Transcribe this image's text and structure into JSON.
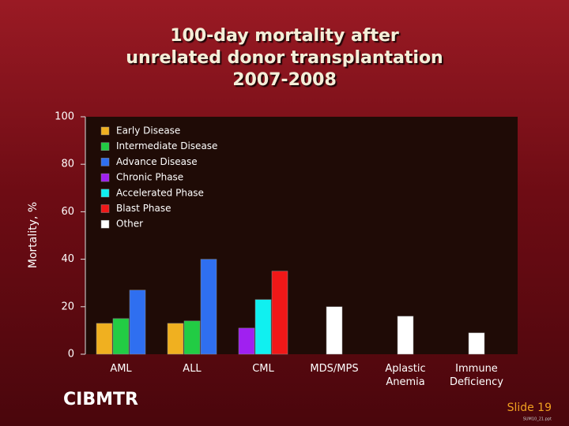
{
  "chart_data": {
    "type": "bar",
    "title": [
      "100-day mortality after",
      "unrelated donor transplantation",
      "2007-2008"
    ],
    "y_label": "Mortality, %",
    "categories": [
      "AML",
      "ALL",
      "CML",
      "MDS/MPS",
      "Aplastic Anemia",
      "Immune Deficiency"
    ],
    "series": [
      {
        "name": "Early Disease",
        "color": "#f0b020",
        "values": [
          13,
          13,
          null,
          null,
          null,
          null
        ]
      },
      {
        "name": "Intermediate Disease",
        "color": "#22cc44",
        "values": [
          15,
          14,
          null,
          null,
          null,
          null
        ]
      },
      {
        "name": "Advance Disease",
        "color": "#2f6ff0",
        "values": [
          27,
          40,
          null,
          null,
          null,
          null
        ]
      },
      {
        "name": "Chronic Phase",
        "color": "#a020f0",
        "values": [
          null,
          null,
          11,
          null,
          null,
          null
        ]
      },
      {
        "name": "Accelerated Phase",
        "color": "#10f0f0",
        "values": [
          null,
          null,
          23,
          null,
          null,
          null
        ]
      },
      {
        "name": "Blast Phase",
        "color": "#f01818",
        "values": [
          null,
          null,
          35,
          null,
          null,
          null
        ]
      },
      {
        "name": "Other",
        "color": "#ffffff",
        "values": [
          null,
          null,
          null,
          20,
          16,
          9
        ]
      }
    ],
    "ylim": [
      0,
      100
    ],
    "yticks": [
      0,
      20,
      40,
      60,
      80,
      100
    ],
    "grid": false,
    "legend": "upper left"
  },
  "footer": {
    "logo": "CIBMTR",
    "slide": "Slide 19",
    "file": "SUM10_21.ppt"
  }
}
